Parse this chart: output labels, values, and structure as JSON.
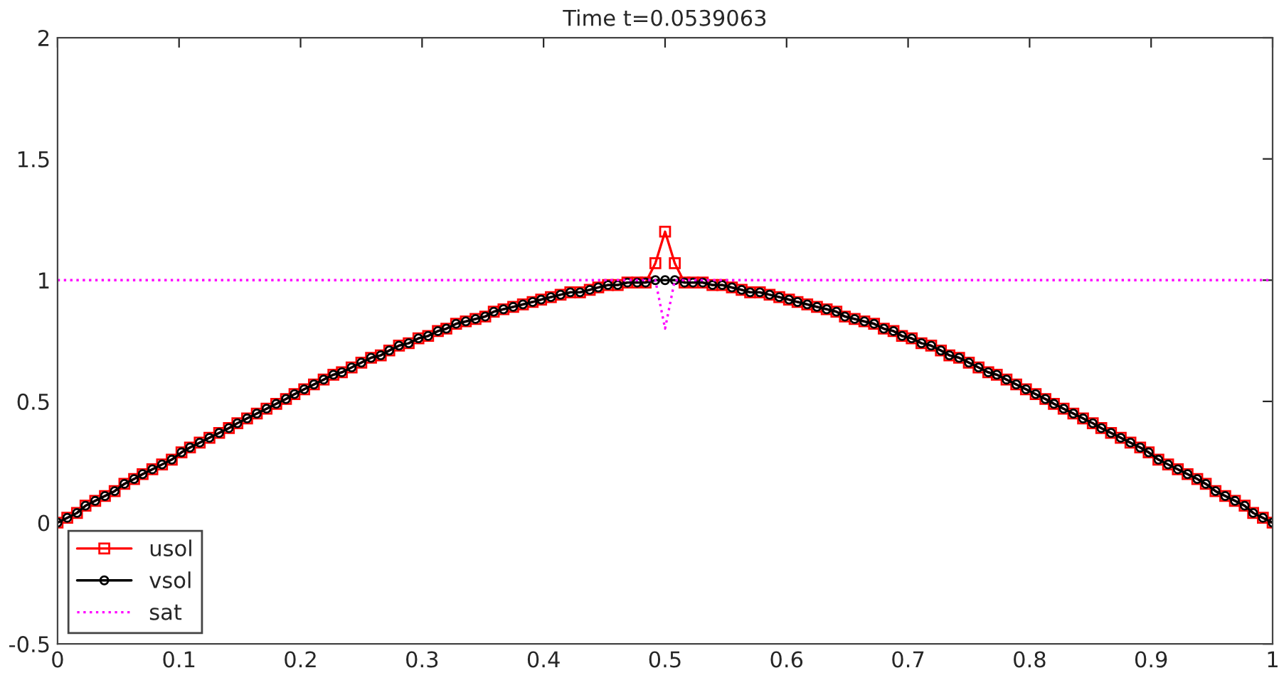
{
  "chart_data": {
    "type": "line",
    "title": "Time t=0.0539063",
    "x": [
      0,
      0.008,
      0.016,
      0.023,
      0.031,
      0.039,
      0.047,
      0.055,
      0.063,
      0.07,
      0.078,
      0.086,
      0.094,
      0.102,
      0.109,
      0.117,
      0.125,
      0.133,
      0.141,
      0.148,
      0.156,
      0.164,
      0.172,
      0.18,
      0.188,
      0.195,
      0.203,
      0.211,
      0.219,
      0.227,
      0.234,
      0.242,
      0.25,
      0.258,
      0.266,
      0.273,
      0.281,
      0.289,
      0.297,
      0.305,
      0.313,
      0.32,
      0.328,
      0.336,
      0.344,
      0.352,
      0.359,
      0.367,
      0.375,
      0.383,
      0.391,
      0.398,
      0.406,
      0.414,
      0.422,
      0.43,
      0.438,
      0.445,
      0.453,
      0.461,
      0.469,
      0.477,
      0.484,
      0.492,
      0.5,
      0.508,
      0.516,
      0.523,
      0.531,
      0.539,
      0.547,
      0.555,
      0.563,
      0.57,
      0.578,
      0.586,
      0.594,
      0.602,
      0.609,
      0.617,
      0.625,
      0.633,
      0.641,
      0.648,
      0.656,
      0.664,
      0.672,
      0.68,
      0.688,
      0.695,
      0.703,
      0.711,
      0.719,
      0.727,
      0.734,
      0.742,
      0.75,
      0.758,
      0.766,
      0.773,
      0.781,
      0.789,
      0.797,
      0.805,
      0.813,
      0.82,
      0.828,
      0.836,
      0.844,
      0.852,
      0.859,
      0.867,
      0.875,
      0.883,
      0.891,
      0.898,
      0.906,
      0.914,
      0.922,
      0.93,
      0.938,
      0.945,
      0.953,
      0.961,
      0.969,
      0.977,
      0.984,
      0.992,
      1
    ],
    "series": [
      {
        "name": "usol",
        "color": "#ff0000",
        "marker": "square",
        "line_style": "solid",
        "values": [
          0,
          0.02,
          0.04,
          0.07,
          0.09,
          0.11,
          0.13,
          0.16,
          0.18,
          0.2,
          0.22,
          0.24,
          0.26,
          0.29,
          0.31,
          0.33,
          0.35,
          0.37,
          0.39,
          0.41,
          0.43,
          0.45,
          0.47,
          0.49,
          0.51,
          0.53,
          0.55,
          0.57,
          0.59,
          0.61,
          0.62,
          0.64,
          0.66,
          0.68,
          0.69,
          0.71,
          0.73,
          0.74,
          0.76,
          0.77,
          0.79,
          0.8,
          0.82,
          0.83,
          0.84,
          0.85,
          0.87,
          0.88,
          0.89,
          0.9,
          0.91,
          0.92,
          0.93,
          0.94,
          0.95,
          0.95,
          0.96,
          0.97,
          0.98,
          0.98,
          0.99,
          0.99,
          0.99,
          1.07,
          1.2,
          1.07,
          0.99,
          0.99,
          0.99,
          0.98,
          0.98,
          0.97,
          0.96,
          0.95,
          0.95,
          0.94,
          0.93,
          0.92,
          0.91,
          0.9,
          0.89,
          0.88,
          0.87,
          0.85,
          0.84,
          0.83,
          0.82,
          0.8,
          0.79,
          0.77,
          0.76,
          0.74,
          0.73,
          0.71,
          0.69,
          0.68,
          0.66,
          0.64,
          0.62,
          0.61,
          0.59,
          0.57,
          0.55,
          0.53,
          0.51,
          0.49,
          0.47,
          0.45,
          0.43,
          0.41,
          0.39,
          0.37,
          0.35,
          0.33,
          0.31,
          0.29,
          0.26,
          0.24,
          0.22,
          0.2,
          0.18,
          0.16,
          0.13,
          0.11,
          0.09,
          0.07,
          0.04,
          0.02,
          0
        ]
      },
      {
        "name": "vsol",
        "color": "#000000",
        "marker": "circle",
        "line_style": "solid",
        "values": [
          0,
          0.02,
          0.04,
          0.07,
          0.09,
          0.11,
          0.13,
          0.16,
          0.18,
          0.2,
          0.22,
          0.24,
          0.26,
          0.29,
          0.31,
          0.33,
          0.35,
          0.37,
          0.39,
          0.41,
          0.43,
          0.45,
          0.47,
          0.49,
          0.51,
          0.53,
          0.55,
          0.57,
          0.59,
          0.61,
          0.62,
          0.64,
          0.66,
          0.68,
          0.69,
          0.71,
          0.73,
          0.74,
          0.76,
          0.77,
          0.79,
          0.8,
          0.82,
          0.83,
          0.84,
          0.85,
          0.87,
          0.88,
          0.89,
          0.9,
          0.91,
          0.92,
          0.93,
          0.94,
          0.95,
          0.95,
          0.96,
          0.97,
          0.98,
          0.98,
          0.99,
          0.99,
          0.99,
          1,
          1,
          1,
          0.99,
          0.99,
          0.99,
          0.98,
          0.98,
          0.97,
          0.96,
          0.95,
          0.95,
          0.94,
          0.93,
          0.92,
          0.91,
          0.9,
          0.89,
          0.88,
          0.87,
          0.85,
          0.84,
          0.83,
          0.82,
          0.8,
          0.79,
          0.77,
          0.76,
          0.74,
          0.73,
          0.71,
          0.69,
          0.68,
          0.66,
          0.64,
          0.62,
          0.61,
          0.59,
          0.57,
          0.55,
          0.53,
          0.51,
          0.49,
          0.47,
          0.45,
          0.43,
          0.41,
          0.39,
          0.37,
          0.35,
          0.33,
          0.31,
          0.29,
          0.26,
          0.24,
          0.22,
          0.2,
          0.18,
          0.16,
          0.13,
          0.11,
          0.09,
          0.07,
          0.04,
          0.02,
          0
        ]
      },
      {
        "name": "sat",
        "color": "#ff00ff",
        "marker": "none",
        "line_style": "dotted",
        "x": [
          0,
          0.492,
          0.5,
          0.508,
          1
        ],
        "values": [
          1,
          1,
          0.8,
          1,
          1
        ]
      }
    ],
    "xlim": [
      0,
      1
    ],
    "xticks": [
      0,
      0.1,
      0.2,
      0.3,
      0.4,
      0.5,
      0.6,
      0.7,
      0.8,
      0.9,
      1
    ],
    "ylim": [
      -0.5,
      2
    ],
    "yticks": [
      -0.5,
      0,
      0.5,
      1,
      1.5,
      2
    ],
    "legend": "bottom left",
    "grid": false
  }
}
